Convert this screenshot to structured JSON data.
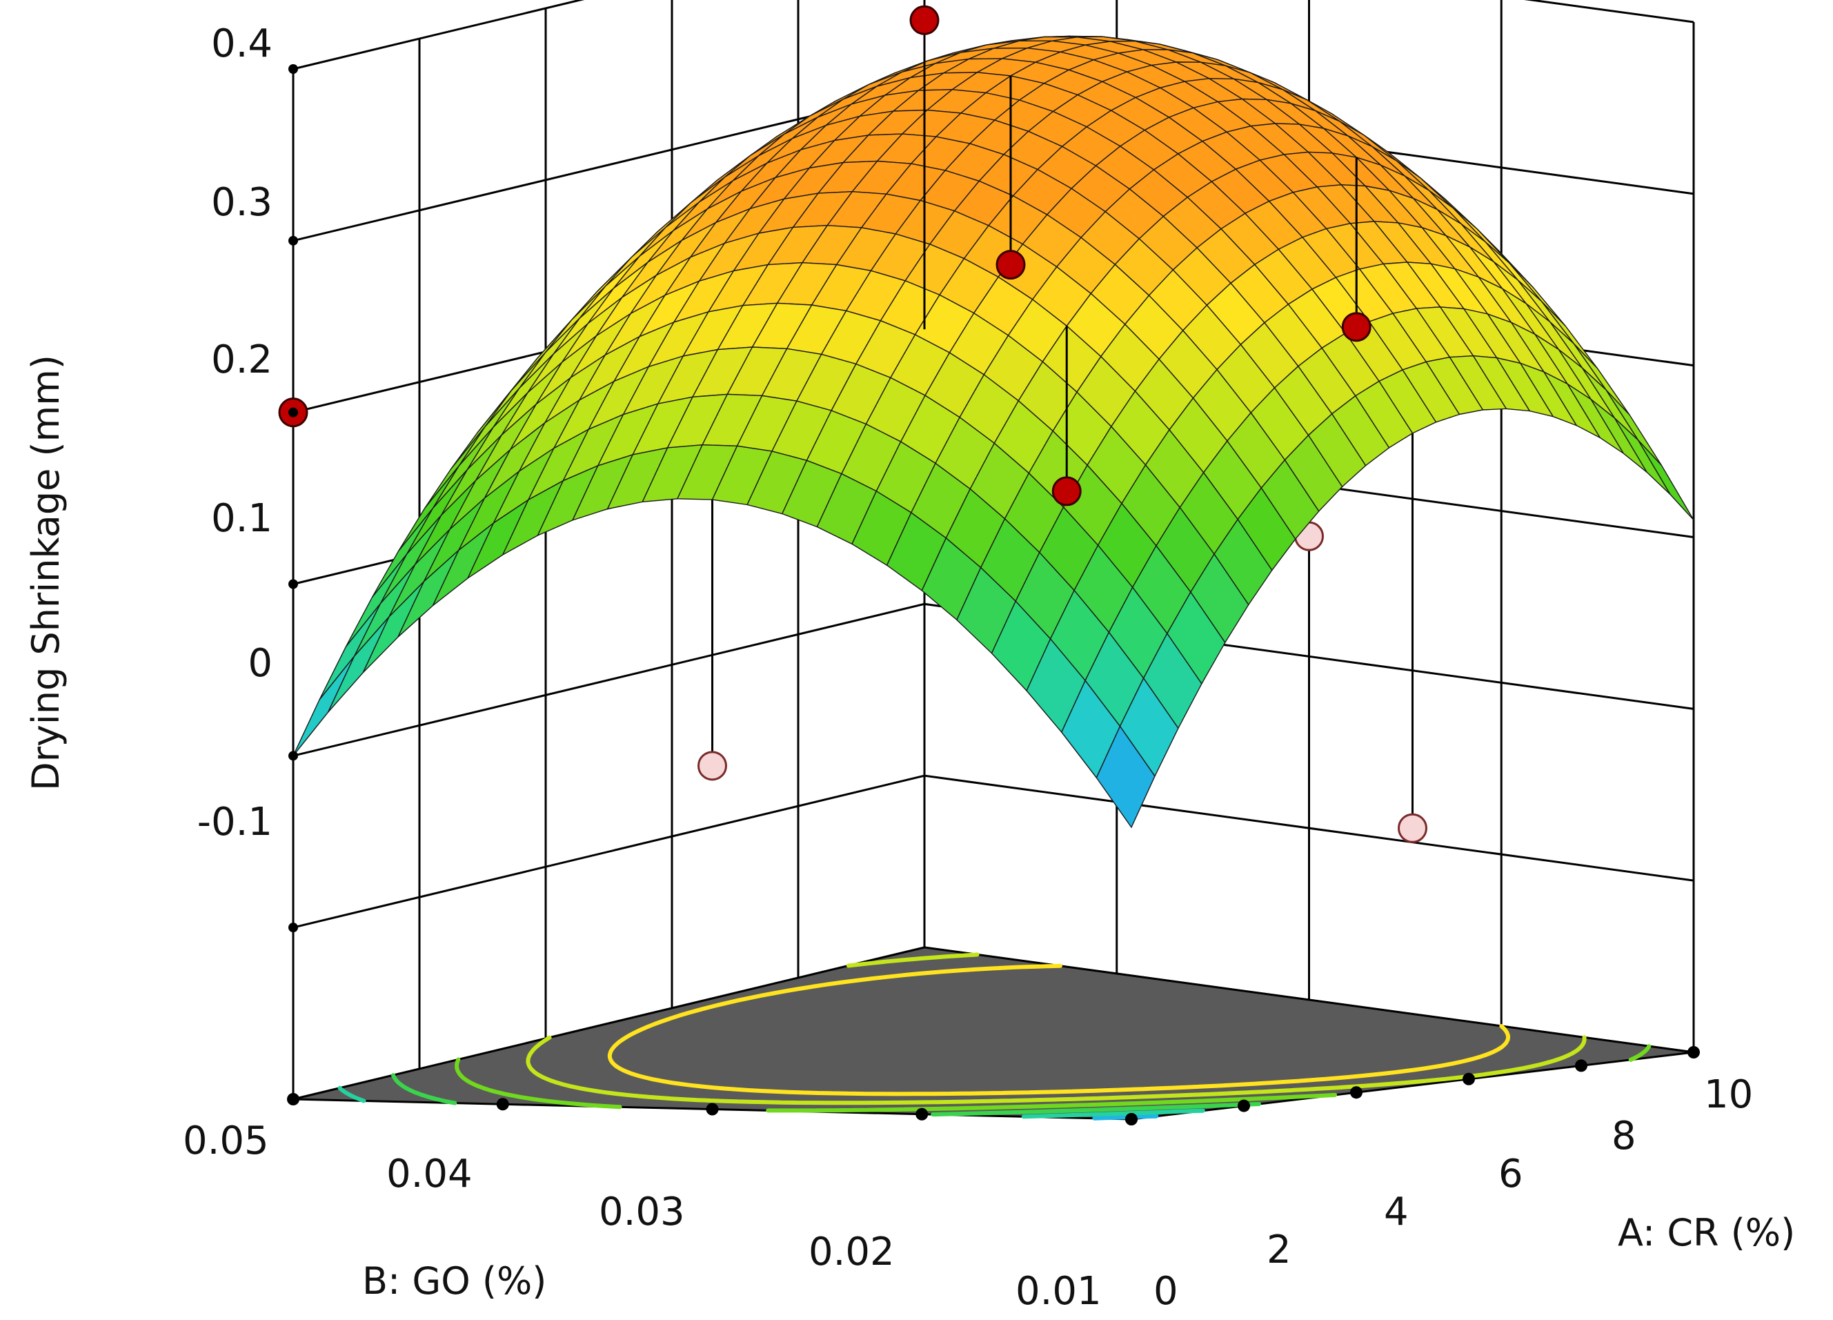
{
  "chart_data": {
    "type": "surface3d",
    "zlabel": "Drying Shrinkage (mm)",
    "xlabel": "A: CR (%)",
    "ylabel": "B: GO (%)",
    "z_ticks": [
      "0.4",
      "0.3",
      "0.2",
      "0.1",
      "0",
      "-0.1"
    ],
    "x_ticks": [
      "0",
      "2",
      "4",
      "6",
      "8",
      "10"
    ],
    "y_ticks": [
      "0.05",
      "0.04",
      "0.03",
      "0.02",
      "0.01"
    ],
    "xlim": [
      0,
      10
    ],
    "ylim": [
      0.01,
      0.05
    ],
    "zlim": [
      -0.2,
      0.4
    ],
    "grid": true,
    "surface": {
      "model": "quadratic",
      "corner_values": {
        "cr0_go001": -0.03,
        "cr10_go001": 0.11,
        "cr0_go005": 0.0,
        "cr10_go005": 0.16
      },
      "peak": {
        "cr": 7.0,
        "go": 0.035,
        "value": 0.3
      }
    },
    "design_points": [
      {
        "cr": 5,
        "go": 0.01,
        "value": -0.05,
        "position": "below"
      },
      {
        "cr": 10,
        "go": 0.03,
        "value": 0.07,
        "position": "below"
      },
      {
        "cr": 0,
        "go": 0.03,
        "value": 0.0,
        "position": "below"
      },
      {
        "cr": 5,
        "go": 0.03,
        "value": 0.26,
        "position": "above"
      },
      {
        "cr": 10,
        "go": 0.05,
        "value": 0.34,
        "position": "above"
      },
      {
        "cr": 0,
        "go": 0.05,
        "value": 0.2,
        "position": "above"
      },
      {
        "cr": 2.5,
        "go": 0.02,
        "value": 0.15,
        "position": "above"
      },
      {
        "cr": 7.5,
        "go": 0.02,
        "value": 0.22,
        "position": "above"
      }
    ],
    "contour_levels": [
      0.0,
      0.05,
      0.1,
      0.15,
      0.2,
      0.25
    ],
    "colors": {
      "floor": "#5a5a5a",
      "grid": "#000000",
      "point_above": "#c00000",
      "point_below": "#f6d6d6",
      "colormap": [
        "#1e5bd6",
        "#21c7e6",
        "#27d67a",
        "#4cd21e",
        "#b9e51a",
        "#ffe31f",
        "#ff9c1a"
      ]
    }
  }
}
